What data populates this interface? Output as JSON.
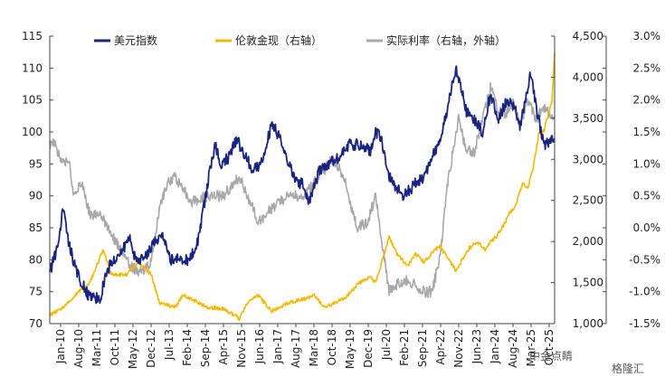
{
  "chart_data": {
    "type": "line",
    "title": "",
    "xlabel": "",
    "grid": false,
    "legend_position": "top",
    "x_ticks": [
      "Jan-10",
      "Aug-10",
      "Mar-11",
      "Oct-11",
      "May-12",
      "Dec-12",
      "Jul-13",
      "Feb-14",
      "Sep-14",
      "Apr-15",
      "Nov-15",
      "Jun-16",
      "Jan-17",
      "Aug-17",
      "Mar-18",
      "Oct-18",
      "May-19",
      "Dec-19",
      "Jul-20",
      "Feb-21",
      "Sep-21",
      "Apr-22",
      "Nov-22",
      "Jun-23",
      "Jan-24",
      "Aug-24",
      "Mar-25",
      "Oct-25"
    ],
    "axes": {
      "left": {
        "ylim": [
          70,
          115
        ],
        "ticks": [
          "70",
          "75",
          "80",
          "85",
          "90",
          "95",
          "100",
          "105",
          "110",
          "115"
        ]
      },
      "right1": {
        "ylim": [
          1000,
          4500
        ],
        "ticks": [
          "1,000",
          "1,500",
          "2,000",
          "2,500",
          "3,000",
          "3,500",
          "4,000",
          "4,500"
        ]
      },
      "right2": {
        "ylim": [
          -1.5,
          3.0
        ],
        "ticks": [
          "-1.5%",
          "-1.0%",
          "-0.5%",
          "0.0%",
          "0.5%",
          "1.0%",
          "1.5%",
          "2.0%",
          "2.5%",
          "3.0%"
        ]
      }
    },
    "series": [
      {
        "name": "美元指数",
        "axis": "left",
        "color": "#1a237e",
        "x": [
          "2010-01",
          "2010-04",
          "2010-06",
          "2010-08",
          "2010-11",
          "2011-04",
          "2011-08",
          "2011-10",
          "2012-01",
          "2012-05",
          "2012-07",
          "2012-09",
          "2012-12",
          "2013-03",
          "2013-07",
          "2013-10",
          "2014-01",
          "2014-05",
          "2014-08",
          "2014-11",
          "2015-01",
          "2015-03",
          "2015-05",
          "2015-08",
          "2015-11",
          "2015-12",
          "2016-05",
          "2016-08",
          "2016-12",
          "2017-01",
          "2017-05",
          "2017-09",
          "2017-12",
          "2018-02",
          "2018-06",
          "2018-09",
          "2019-01",
          "2019-05",
          "2019-09",
          "2020-01",
          "2020-03",
          "2020-05",
          "2020-08",
          "2021-01",
          "2021-04",
          "2021-06",
          "2021-09",
          "2021-12",
          "2022-03",
          "2022-06",
          "2022-09",
          "2022-11",
          "2023-01",
          "2023-04",
          "2023-07",
          "2023-10",
          "2024-01",
          "2024-04",
          "2024-07",
          "2024-09",
          "2025-01",
          "2025-03",
          "2025-06",
          "2025-10"
        ],
        "values": [
          78,
          82,
          88,
          83,
          78,
          74,
          74,
          78,
          80,
          82,
          84,
          80,
          80,
          82,
          84,
          80,
          80,
          80,
          82,
          89,
          94,
          98,
          95,
          96,
          99,
          98,
          94,
          95,
          101,
          101,
          97,
          92,
          92,
          89,
          94,
          95,
          96,
          98,
          98,
          97,
          100,
          99,
          93,
          90,
          91,
          92,
          93,
          96,
          98,
          104,
          110,
          107,
          103,
          102,
          100,
          106,
          102,
          105,
          104,
          101,
          109,
          104,
          98,
          99
        ]
      },
      {
        "name": "伦敦金现（右轴）",
        "axis": "right1",
        "color": "#f5b800",
        "x": [
          "2010-01",
          "2010-06",
          "2010-12",
          "2011-04",
          "2011-09",
          "2011-12",
          "2012-06",
          "2012-10",
          "2013-03",
          "2013-06",
          "2013-12",
          "2014-03",
          "2014-12",
          "2015-06",
          "2015-12",
          "2016-03",
          "2016-07",
          "2016-12",
          "2017-06",
          "2017-12",
          "2018-04",
          "2018-08",
          "2019-03",
          "2019-06",
          "2019-09",
          "2020-01",
          "2020-03",
          "2020-08",
          "2020-11",
          "2021-03",
          "2021-06",
          "2021-09",
          "2022-03",
          "2022-06",
          "2022-09",
          "2022-11",
          "2023-02",
          "2023-05",
          "2023-08",
          "2023-10",
          "2023-12",
          "2024-03",
          "2024-05",
          "2024-07",
          "2024-10",
          "2024-12",
          "2025-02",
          "2025-04",
          "2025-06",
          "2025-09",
          "2025-10"
        ],
        "values": [
          1100,
          1200,
          1400,
          1500,
          1900,
          1600,
          1600,
          1750,
          1600,
          1250,
          1200,
          1350,
          1200,
          1180,
          1060,
          1250,
          1350,
          1150,
          1250,
          1300,
          1340,
          1200,
          1300,
          1400,
          1500,
          1560,
          1500,
          2050,
          1850,
          1700,
          1850,
          1750,
          1950,
          1800,
          1650,
          1750,
          1920,
          2000,
          1900,
          2000,
          2050,
          2200,
          2350,
          2400,
          2700,
          2650,
          2900,
          3300,
          3350,
          3700,
          4300
        ]
      },
      {
        "name": "实际利率（右轴，外轴）",
        "axis": "right2",
        "color": "#a8a8a8",
        "x": [
          "2010-01",
          "2010-03",
          "2010-06",
          "2010-08",
          "2010-10",
          "2011-01",
          "2011-04",
          "2011-08",
          "2011-12",
          "2012-07",
          "2012-12",
          "2013-03",
          "2013-06",
          "2013-09",
          "2013-12",
          "2014-06",
          "2014-12",
          "2015-06",
          "2015-12",
          "2016-07",
          "2016-12",
          "2017-06",
          "2017-12",
          "2018-06",
          "2018-11",
          "2019-03",
          "2019-06",
          "2019-08",
          "2019-12",
          "2020-03",
          "2020-06",
          "2020-08",
          "2021-02",
          "2021-06",
          "2021-09",
          "2021-12",
          "2022-03",
          "2022-06",
          "2022-10",
          "2023-01",
          "2023-04",
          "2023-07",
          "2023-10",
          "2024-01",
          "2024-04",
          "2024-06",
          "2024-09",
          "2024-12",
          "2025-03",
          "2025-06",
          "2025-10"
        ],
        "values": [
          1.3,
          1.3,
          1.0,
          1.1,
          0.5,
          0.7,
          0.2,
          0.2,
          -0.1,
          -0.6,
          -0.7,
          -0.5,
          0.3,
          0.7,
          0.8,
          0.4,
          0.5,
          0.5,
          0.8,
          0.1,
          0.3,
          0.5,
          0.5,
          0.8,
          1.1,
          0.8,
          0.3,
          0.0,
          0.1,
          0.5,
          -0.4,
          -1.0,
          -0.8,
          -0.9,
          -1.0,
          -1.0,
          -0.5,
          0.7,
          1.7,
          1.2,
          1.2,
          1.7,
          2.2,
          1.8,
          1.8,
          2.0,
          1.6,
          2.0,
          1.7,
          1.9,
          1.7
        ]
      }
    ]
  },
  "watermark": "中金点睛",
  "watermark_mark": "格隆汇"
}
